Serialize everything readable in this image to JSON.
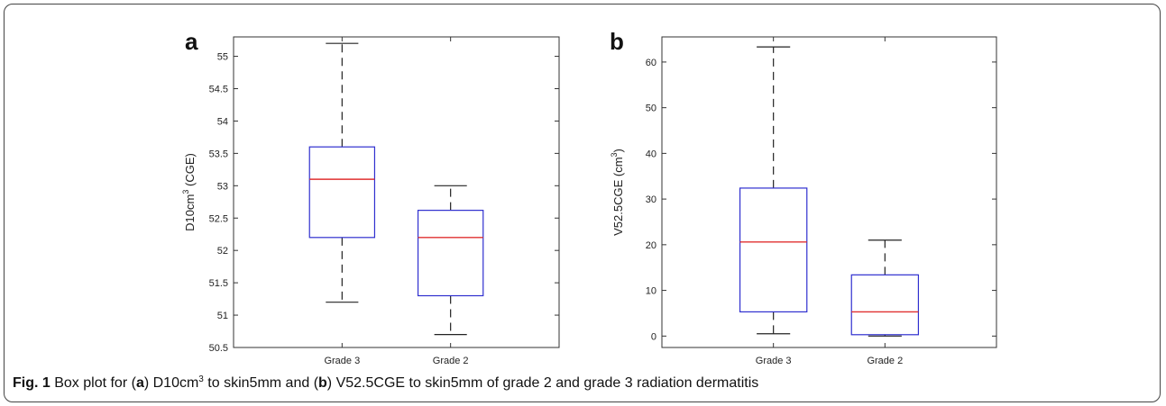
{
  "chart_data": [
    {
      "type": "box",
      "panel_label": "a",
      "ylabel": "D10cm3 (CGE)",
      "ylim": [
        50.5,
        55.3
      ],
      "yticks": [
        "50.5",
        "51",
        "51.5",
        "52",
        "52.5",
        "53",
        "53.5",
        "54",
        "54.5",
        "55"
      ],
      "categories": [
        "Grade 3",
        "Grade 2"
      ],
      "boxes": [
        {
          "category": "Grade 3",
          "whisker_low": 51.2,
          "q1": 52.2,
          "median": 53.1,
          "q3": 53.6,
          "whisker_high": 55.2
        },
        {
          "category": "Grade 2",
          "whisker_low": 50.7,
          "q1": 51.3,
          "median": 52.2,
          "q3": 52.62,
          "whisker_high": 53.0
        }
      ],
      "colors": {
        "box": "#2f2fcf",
        "median": "#e03030",
        "whisker": "#222222"
      }
    },
    {
      "type": "box",
      "panel_label": "b",
      "ylabel": "V52.5CGE (cm3)",
      "ylim": [
        -2.5,
        65.5
      ],
      "yticks": [
        "0",
        "10",
        "20",
        "30",
        "40",
        "50",
        "60"
      ],
      "categories": [
        "Grade 3",
        "Grade 2"
      ],
      "boxes": [
        {
          "category": "Grade 3",
          "whisker_low": 0.5,
          "q1": 5.3,
          "median": 20.6,
          "q3": 32.4,
          "whisker_high": 63.3
        },
        {
          "category": "Grade 2",
          "whisker_low": 0.0,
          "q1": 0.3,
          "median": 5.3,
          "q3": 13.4,
          "whisker_high": 21.0
        }
      ],
      "colors": {
        "box": "#2f2fcf",
        "median": "#e03030",
        "whisker": "#222222"
      }
    }
  ],
  "caption": {
    "fig_label": "Fig. 1",
    "t1": " Box plot for (",
    "a": "a",
    "t2": ") D10cm",
    "sup": "3",
    "t3": " to skin5mm and (",
    "b": "b",
    "t4": ") V52.5CGE to skin5mm of grade 2 and grade 3 radiation dermatitis"
  }
}
